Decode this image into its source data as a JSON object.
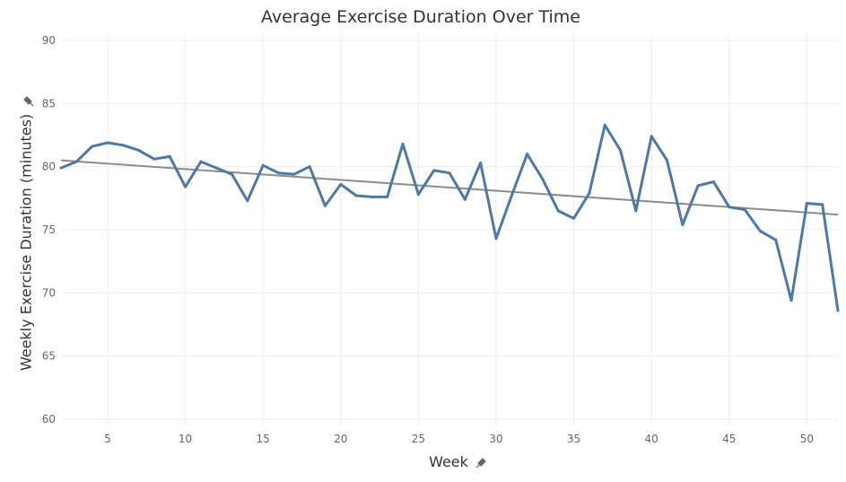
{
  "chart_data": {
    "type": "line",
    "title": "Average Exercise Duration Over Time",
    "xlabel": "Week",
    "ylabel": "Weekly Exercise Duration (minutes)",
    "xlim": [
      2,
      52
    ],
    "ylim": [
      59.5,
      90.5
    ],
    "x_ticks": [
      5,
      10,
      15,
      20,
      25,
      30,
      35,
      40,
      45,
      50
    ],
    "y_ticks": [
      60,
      65,
      70,
      75,
      80,
      85,
      90
    ],
    "grid": true,
    "legend": "none",
    "series": [
      {
        "x": [
          2,
          3,
          4,
          5,
          6,
          7,
          8,
          9,
          10,
          11,
          12,
          13,
          14,
          15,
          16,
          17,
          18,
          19,
          20,
          21,
          22,
          23,
          24,
          25,
          26,
          27,
          28,
          29,
          30,
          31,
          32,
          33,
          34,
          35,
          36,
          37,
          38,
          39,
          40,
          41,
          42,
          43,
          44,
          45,
          46,
          47,
          48,
          49,
          50,
          51,
          52
        ],
        "values": [
          79.9,
          80.4,
          81.6,
          81.9,
          81.7,
          81.3,
          80.6,
          80.8,
          78.4,
          80.4,
          79.9,
          79.4,
          77.3,
          80.1,
          79.5,
          79.4,
          80.0,
          76.9,
          78.6,
          77.7,
          77.6,
          77.6,
          81.8,
          77.8,
          79.7,
          79.5,
          77.4,
          80.3,
          74.3,
          77.7,
          81.0,
          79.0,
          76.5,
          75.9,
          77.9,
          83.3,
          81.3,
          76.5,
          82.4,
          80.5,
          75.4,
          78.5,
          78.8,
          76.8,
          76.6,
          74.9,
          74.2,
          69.4,
          77.1,
          77.0,
          68.6
        ],
        "color": "#4e79a7"
      }
    ],
    "trend_line": {
      "x": [
        2,
        52
      ],
      "values": [
        80.5,
        76.2
      ],
      "color": "#8c8c8c"
    }
  }
}
